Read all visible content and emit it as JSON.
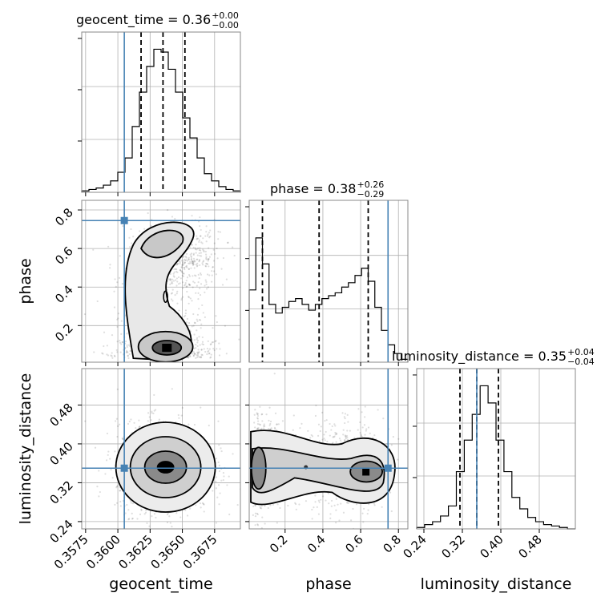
{
  "chart_data": {
    "type": "corner",
    "parameters": [
      "geocent_time",
      "phase",
      "luminosity_distance"
    ],
    "truths": {
      "geocent_time": 0.3605,
      "phase": 0.745,
      "luminosity_distance": 0.35
    },
    "titles": [
      {
        "label": "geocent_time = 0.36",
        "sup": "+0.00",
        "sub": "−0.00"
      },
      {
        "label": "phase = 0.38",
        "sup": "+0.26",
        "sub": "−0.29"
      },
      {
        "label": "luminosity_distance = 0.35",
        "sup": "+0.04",
        "sub": "−0.04"
      }
    ],
    "axes": {
      "geocent_time": {
        "range": [
          0.3572,
          0.3695
        ],
        "ticks": [
          "0.3575",
          "0.3600",
          "0.3625",
          "0.3650",
          "0.3675"
        ],
        "tick_values": [
          0.3575,
          0.36,
          0.3625,
          0.365,
          0.3675
        ]
      },
      "phase": {
        "range": [
          0.01,
          0.85
        ],
        "ticks": [
          "0.2",
          "0.4",
          "0.6",
          "0.8"
        ],
        "tick_values": [
          0.2,
          0.4,
          0.6,
          0.8
        ]
      },
      "luminosity_distance": {
        "range": [
          0.225,
          0.555
        ],
        "ticks": [
          "0.24",
          "0.32",
          "0.40",
          "0.48"
        ],
        "tick_values": [
          0.24,
          0.32,
          0.4,
          0.48
        ]
      }
    },
    "hist_1d": {
      "geocent_time": {
        "bin_range": [
          0.3572,
          0.3695
        ],
        "counts": [
          1,
          2,
          3,
          5,
          8,
          14,
          24,
          46,
          70,
          88,
          100,
          98,
          86,
          70,
          52,
          38,
          24,
          13,
          8,
          4,
          2,
          1
        ],
        "quantiles": [
          0.3618,
          0.3635,
          0.3652
        ]
      },
      "phase": {
        "bin_range": [
          0.01,
          0.85
        ],
        "counts": [
          50,
          86,
          68,
          40,
          34,
          38,
          42,
          44,
          40,
          36,
          40,
          44,
          46,
          48,
          52,
          55,
          60,
          65,
          56,
          38,
          22,
          12,
          6,
          2
        ],
        "quantiles": [
          0.08,
          0.38,
          0.64
        ]
      },
      "luminosity_distance": {
        "bin_range": [
          0.225,
          0.555
        ],
        "counts": [
          1,
          3,
          5,
          9,
          16,
          40,
          62,
          80,
          100,
          88,
          62,
          40,
          22,
          14,
          8,
          5,
          3,
          2,
          1,
          0
        ],
        "quantiles": [
          0.315,
          0.35,
          0.395
        ]
      }
    },
    "ylim_1d": [
      0,
      112
    ],
    "grid": true,
    "legend": "none"
  }
}
